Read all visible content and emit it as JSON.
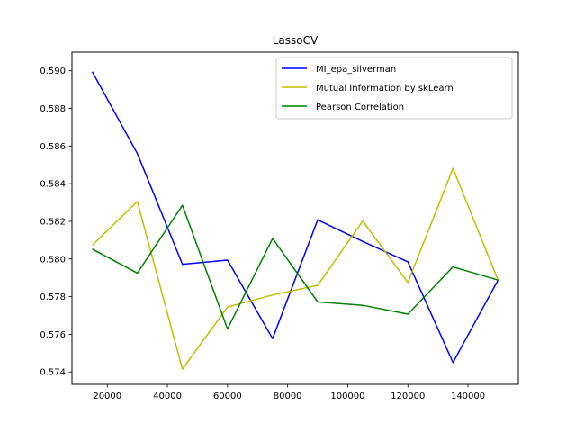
{
  "chart_data": {
    "type": "line",
    "title": "LassoCV",
    "xlabel": "",
    "ylabel": "",
    "x": [
      15000,
      30000,
      45000,
      60000,
      75000,
      90000,
      105000,
      120000,
      135000,
      150000
    ],
    "xlim": [
      8250,
      156750
    ],
    "ylim": [
      0.57334,
      0.59099
    ],
    "xticks": [
      20000,
      40000,
      60000,
      80000,
      100000,
      120000,
      140000
    ],
    "yticks": [
      0.574,
      0.576,
      0.578,
      0.58,
      0.582,
      0.584,
      0.586,
      0.588,
      0.59
    ],
    "xtick_labels": [
      "20000",
      "40000",
      "60000",
      "80000",
      "100000",
      "120000",
      "140000"
    ],
    "ytick_labels": [
      "0.574",
      "0.576",
      "0.578",
      "0.580",
      "0.582",
      "0.584",
      "0.586",
      "0.588",
      "0.590"
    ],
    "grid": false,
    "legend_position": "top-right",
    "series": [
      {
        "name": "MI_epa_silverman",
        "color": "#0000ff",
        "values": [
          0.58995,
          0.5856,
          0.57972,
          0.57994,
          0.57577,
          0.58208,
          0.58093,
          0.57985,
          0.5745,
          0.57888
        ]
      },
      {
        "name": "Mutual Information by skLearn",
        "color": "#bfbf00",
        "values": [
          0.58073,
          0.58305,
          0.57415,
          0.57745,
          0.57809,
          0.5786,
          0.58202,
          0.57875,
          0.58481,
          0.57888
        ]
      },
      {
        "name": "Pearson Correlation",
        "color": "#008000",
        "values": [
          0.58053,
          0.57925,
          0.58285,
          0.57628,
          0.58109,
          0.57772,
          0.57754,
          0.57707,
          0.57958,
          0.57888
        ]
      }
    ]
  }
}
